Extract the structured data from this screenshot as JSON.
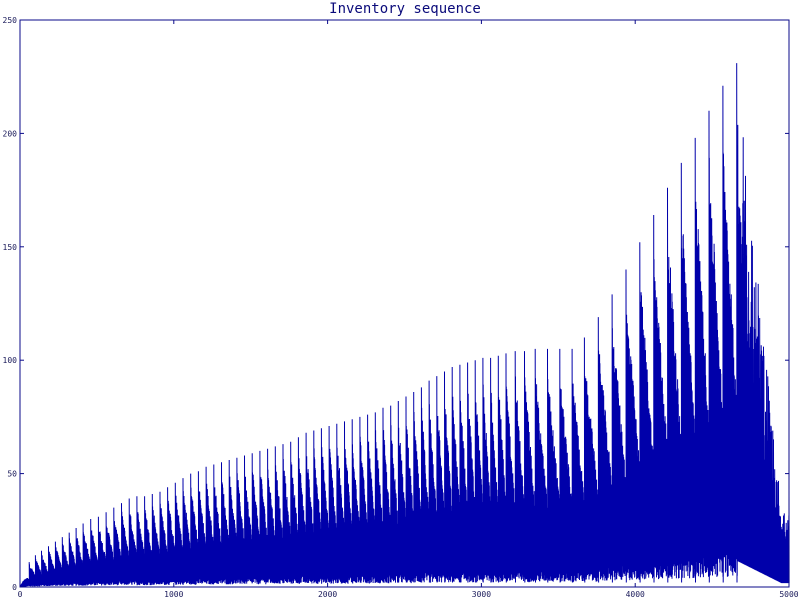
{
  "chart_data": {
    "type": "line",
    "title": "Inventory sequence",
    "xlabel": "",
    "ylabel": "",
    "xlim": [
      0,
      5000
    ],
    "ylim": [
      0,
      250
    ],
    "x_ticks": [
      0,
      1000,
      2000,
      3000,
      4000,
      5000
    ],
    "y_ticks": [
      0,
      50,
      100,
      150,
      200,
      250
    ],
    "grid": false,
    "line_color": "#0000aa",
    "series": [
      {
        "peaks": [
          {
            "x": 60,
            "y": 11
          },
          {
            "x": 100,
            "y": 14
          },
          {
            "x": 140,
            "y": 16
          },
          {
            "x": 185,
            "y": 18
          },
          {
            "x": 230,
            "y": 20
          },
          {
            "x": 275,
            "y": 22
          },
          {
            "x": 320,
            "y": 24
          },
          {
            "x": 365,
            "y": 26
          },
          {
            "x": 410,
            "y": 28
          },
          {
            "x": 460,
            "y": 30
          },
          {
            "x": 510,
            "y": 31
          },
          {
            "x": 560,
            "y": 33
          },
          {
            "x": 610,
            "y": 35
          },
          {
            "x": 660,
            "y": 37
          },
          {
            "x": 710,
            "y": 39
          },
          {
            "x": 760,
            "y": 40
          },
          {
            "x": 810,
            "y": 40
          },
          {
            "x": 860,
            "y": 41
          },
          {
            "x": 910,
            "y": 42
          },
          {
            "x": 960,
            "y": 44
          },
          {
            "x": 1010,
            "y": 46
          },
          {
            "x": 1060,
            "y": 48
          },
          {
            "x": 1110,
            "y": 50
          },
          {
            "x": 1160,
            "y": 51
          },
          {
            "x": 1210,
            "y": 53
          },
          {
            "x": 1260,
            "y": 54
          },
          {
            "x": 1310,
            "y": 55
          },
          {
            "x": 1360,
            "y": 56
          },
          {
            "x": 1410,
            "y": 57
          },
          {
            "x": 1460,
            "y": 58
          },
          {
            "x": 1510,
            "y": 59
          },
          {
            "x": 1560,
            "y": 60
          },
          {
            "x": 1610,
            "y": 61
          },
          {
            "x": 1660,
            "y": 62
          },
          {
            "x": 1710,
            "y": 63
          },
          {
            "x": 1760,
            "y": 64
          },
          {
            "x": 1810,
            "y": 66
          },
          {
            "x": 1860,
            "y": 68
          },
          {
            "x": 1910,
            "y": 69
          },
          {
            "x": 1960,
            "y": 70
          },
          {
            "x": 2010,
            "y": 71
          },
          {
            "x": 2060,
            "y": 72
          },
          {
            "x": 2110,
            "y": 73
          },
          {
            "x": 2160,
            "y": 74
          },
          {
            "x": 2210,
            "y": 75
          },
          {
            "x": 2260,
            "y": 76
          },
          {
            "x": 2310,
            "y": 77
          },
          {
            "x": 2360,
            "y": 79
          },
          {
            "x": 2410,
            "y": 80
          },
          {
            "x": 2460,
            "y": 82
          },
          {
            "x": 2510,
            "y": 84
          },
          {
            "x": 2560,
            "y": 86
          },
          {
            "x": 2610,
            "y": 88
          },
          {
            "x": 2660,
            "y": 91
          },
          {
            "x": 2710,
            "y": 93
          },
          {
            "x": 2760,
            "y": 95
          },
          {
            "x": 2810,
            "y": 97
          },
          {
            "x": 2860,
            "y": 98
          },
          {
            "x": 2910,
            "y": 99
          },
          {
            "x": 2960,
            "y": 100
          },
          {
            "x": 3010,
            "y": 101
          },
          {
            "x": 3060,
            "y": 101
          },
          {
            "x": 3110,
            "y": 102
          },
          {
            "x": 3160,
            "y": 103
          },
          {
            "x": 3220,
            "y": 104
          },
          {
            "x": 3280,
            "y": 104
          },
          {
            "x": 3350,
            "y": 105
          },
          {
            "x": 3430,
            "y": 105
          },
          {
            "x": 3510,
            "y": 105
          },
          {
            "x": 3590,
            "y": 105
          },
          {
            "x": 3670,
            "y": 110
          },
          {
            "x": 3760,
            "y": 119
          },
          {
            "x": 3850,
            "y": 129
          },
          {
            "x": 3940,
            "y": 140
          },
          {
            "x": 4030,
            "y": 152
          },
          {
            "x": 4120,
            "y": 164
          },
          {
            "x": 4210,
            "y": 176
          },
          {
            "x": 4300,
            "y": 187
          },
          {
            "x": 4390,
            "y": 198
          },
          {
            "x": 4480,
            "y": 210
          },
          {
            "x": 4570,
            "y": 221
          },
          {
            "x": 4660,
            "y": 231
          }
        ],
        "secondary_peaks": [
          {
            "x": 3770,
            "y": 97
          },
          {
            "x": 3860,
            "y": 91
          },
          {
            "x": 3950,
            "y": 86
          },
          {
            "x": 4040,
            "y": 86
          },
          {
            "x": 4130,
            "y": 92
          },
          {
            "x": 4220,
            "y": 90
          },
          {
            "x": 4310,
            "y": 92
          },
          {
            "x": 4400,
            "y": 88
          },
          {
            "x": 4490,
            "y": 90
          },
          {
            "x": 4580,
            "y": 94
          },
          {
            "x": 4670,
            "y": 160
          },
          {
            "x": 4680,
            "y": 96
          }
        ]
      }
    ]
  }
}
